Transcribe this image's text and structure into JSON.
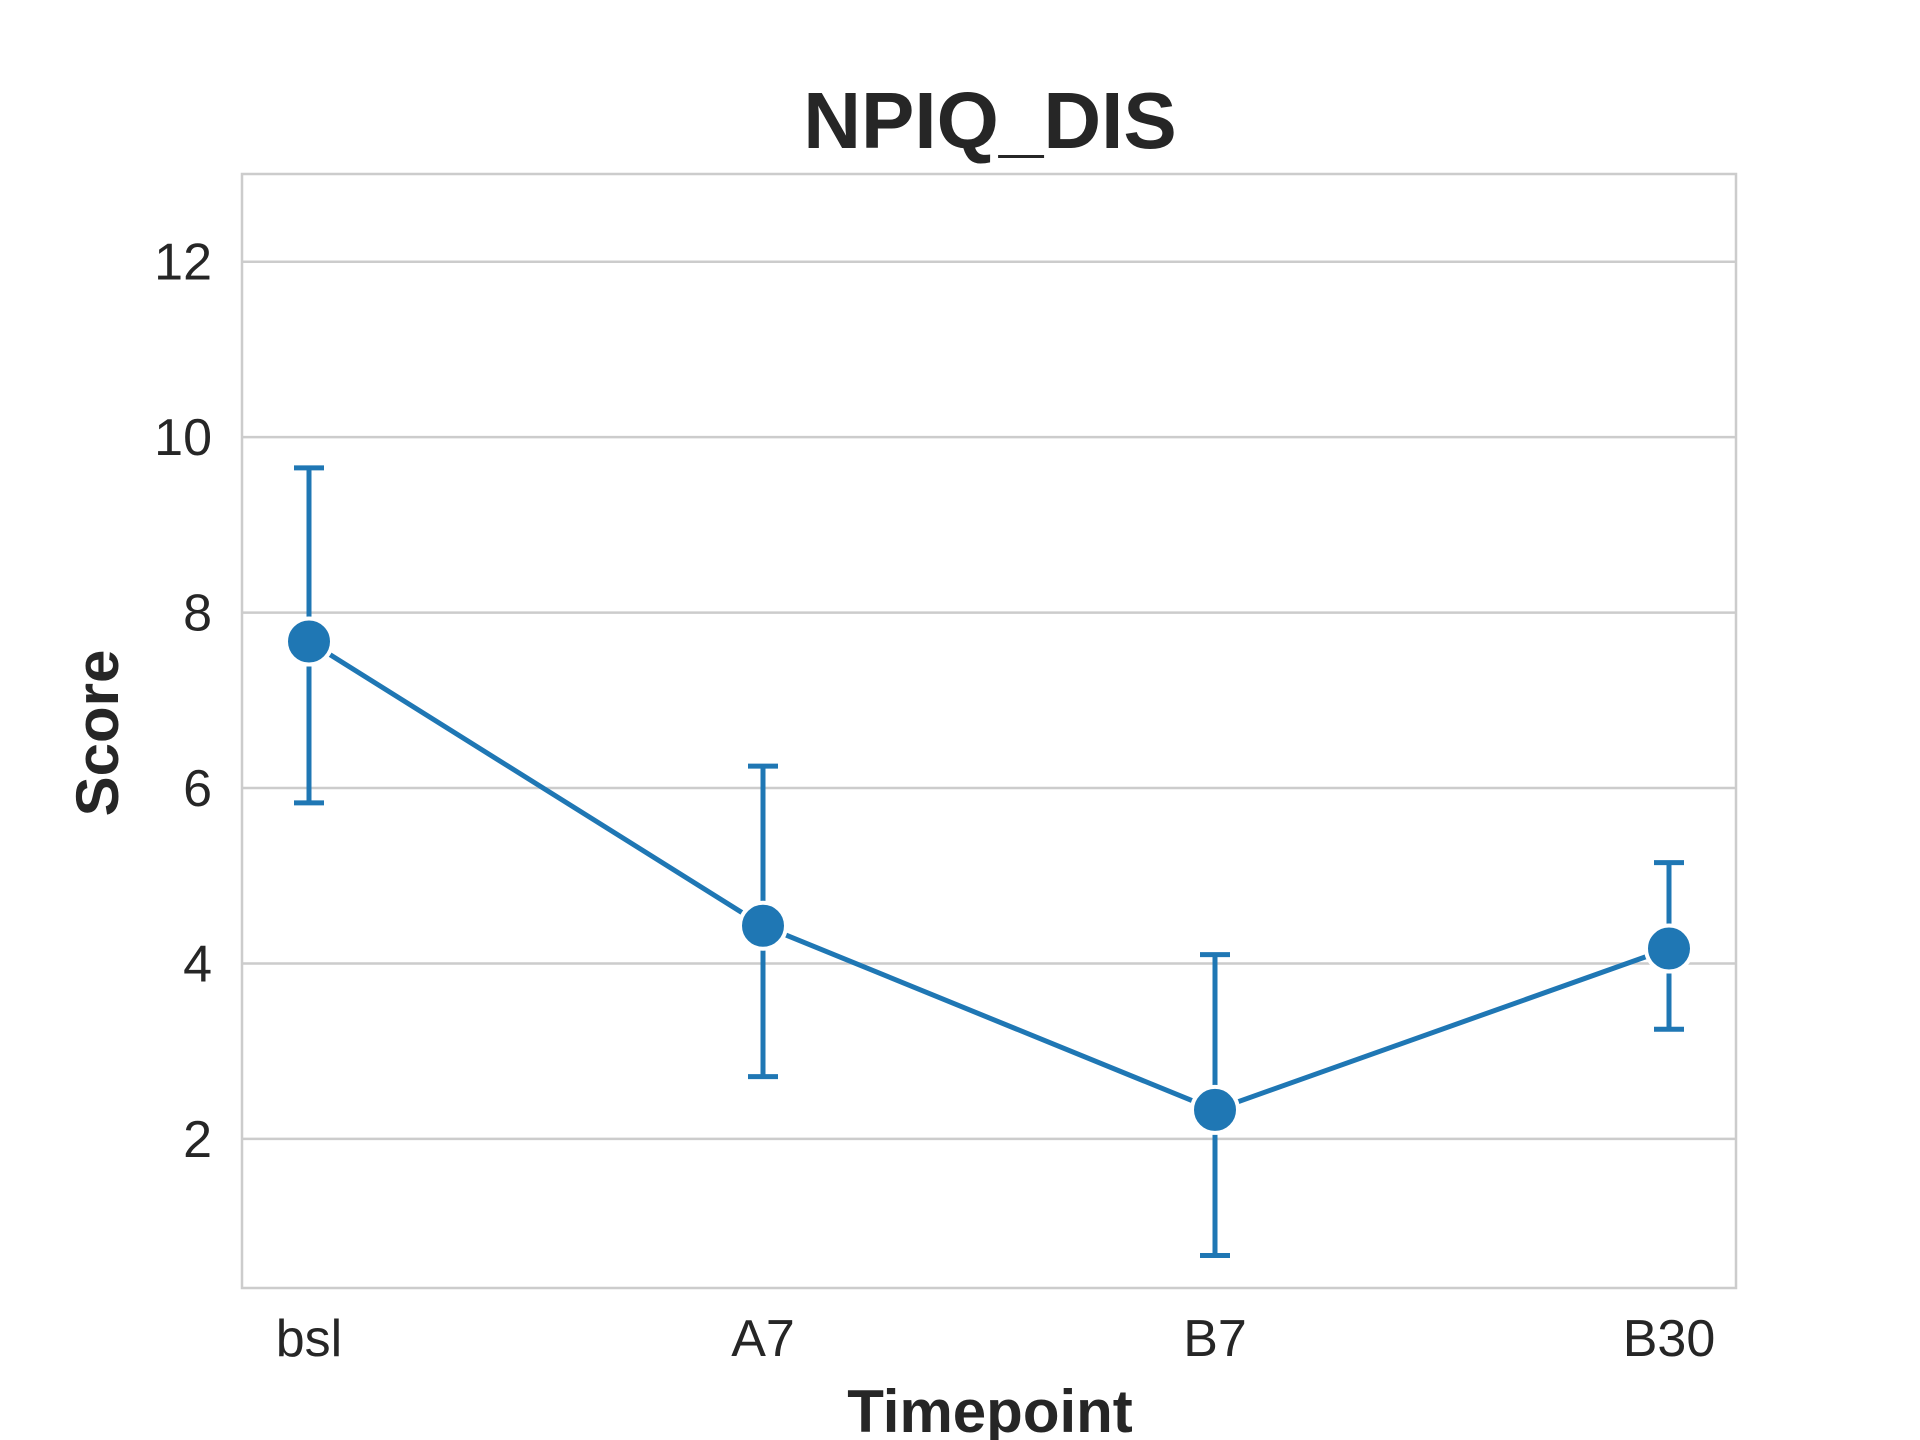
{
  "chart_data": {
    "type": "line",
    "title": "NPIQ_DIS",
    "xlabel": "Timepoint",
    "ylabel": "Score",
    "categories": [
      "bsl",
      "A7",
      "B7",
      "B30"
    ],
    "yticks": [
      2,
      4,
      6,
      8,
      10,
      12
    ],
    "ylim": [
      0.3,
      13.0
    ],
    "grid": true,
    "series": [
      {
        "values": [
          7.67,
          4.43,
          2.33,
          4.17
        ],
        "err_low": [
          5.83,
          2.71,
          0.67,
          3.25
        ],
        "err_high": [
          9.65,
          6.25,
          4.1,
          5.15
        ],
        "color": "#1f77b4"
      }
    ]
  }
}
